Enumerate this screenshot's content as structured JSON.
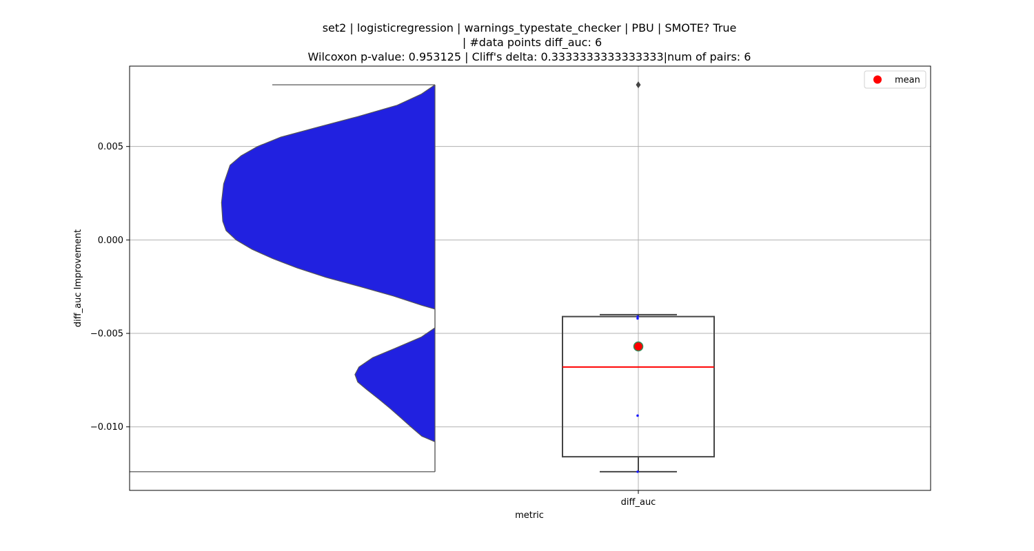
{
  "chart_data": {
    "type": "violin+box",
    "title_lines": [
      "set2 | logisticregression | warnings_typestate_checker | PBU | SMOTE? True",
      "| #data points diff_auc: 6",
      "Wilcoxon p-value: 0.953125 | Cliff's delta: 0.3333333333333333|num of pairs: 6"
    ],
    "xlabel": "metric",
    "ylabel": "diff_auc Improvement",
    "categories": [
      "diff_auc"
    ],
    "ylim": [
      -0.0134,
      0.0093
    ],
    "yticks": [
      0.005,
      0.0,
      -0.005,
      -0.01
    ],
    "ytick_labels": [
      "0.005",
      "0.000",
      "−0.005",
      "−0.010"
    ],
    "grid": true,
    "legend": {
      "position": "top-right",
      "entries": [
        "mean"
      ]
    },
    "violin": {
      "color": "#2121e0",
      "y_range": [
        -0.0124,
        0.0083
      ],
      "profile": [
        [
          0.0083,
          0.0
        ],
        [
          0.0078,
          0.045
        ],
        [
          0.0072,
          0.125
        ],
        [
          0.0066,
          0.253
        ],
        [
          0.006,
          0.392
        ],
        [
          0.0055,
          0.505
        ],
        [
          0.005,
          0.581
        ],
        [
          0.0045,
          0.635
        ],
        [
          0.004,
          0.671
        ],
        [
          0.003,
          0.692
        ],
        [
          0.002,
          0.699
        ],
        [
          0.001,
          0.695
        ],
        [
          0.0005,
          0.684
        ],
        [
          0.0,
          0.651
        ],
        [
          -0.0005,
          0.599
        ],
        [
          -0.001,
          0.531
        ],
        [
          -0.0015,
          0.451
        ],
        [
          -0.002,
          0.357
        ],
        [
          -0.0025,
          0.245
        ],
        [
          -0.003,
          0.136
        ],
        [
          -0.0035,
          0.043
        ],
        [
          -0.0037,
          0.0
        ],
        [
          -0.0047,
          0.0
        ],
        [
          -0.0052,
          0.045
        ],
        [
          -0.0058,
          0.131
        ],
        [
          -0.0063,
          0.204
        ],
        [
          -0.0068,
          0.249
        ],
        [
          -0.0072,
          0.262
        ],
        [
          -0.0076,
          0.253
        ],
        [
          -0.008,
          0.224
        ],
        [
          -0.0085,
          0.185
        ],
        [
          -0.009,
          0.148
        ],
        [
          -0.0095,
          0.113
        ],
        [
          -0.01,
          0.079
        ],
        [
          -0.0105,
          0.043
        ],
        [
          -0.0108,
          0.0
        ],
        [
          -0.0124,
          0.0
        ]
      ]
    },
    "box": {
      "q1": -0.0116,
      "median": -0.0068,
      "q3": -0.0041,
      "whisker_low": -0.0124,
      "whisker_high": -0.004,
      "outliers": [
        0.0083
      ],
      "mean": -0.0057,
      "points": [
        -0.0041,
        -0.0042,
        -0.0094,
        -0.0124
      ]
    },
    "colors": {
      "violin_fill": "#2121e0",
      "box_edge": "#444444",
      "median": "#ff0000",
      "mean_marker": "#ff0000",
      "mean_marker_edge": "#2e8b57",
      "points": "#1a1aff",
      "grid": "#b0b0b0"
    }
  }
}
